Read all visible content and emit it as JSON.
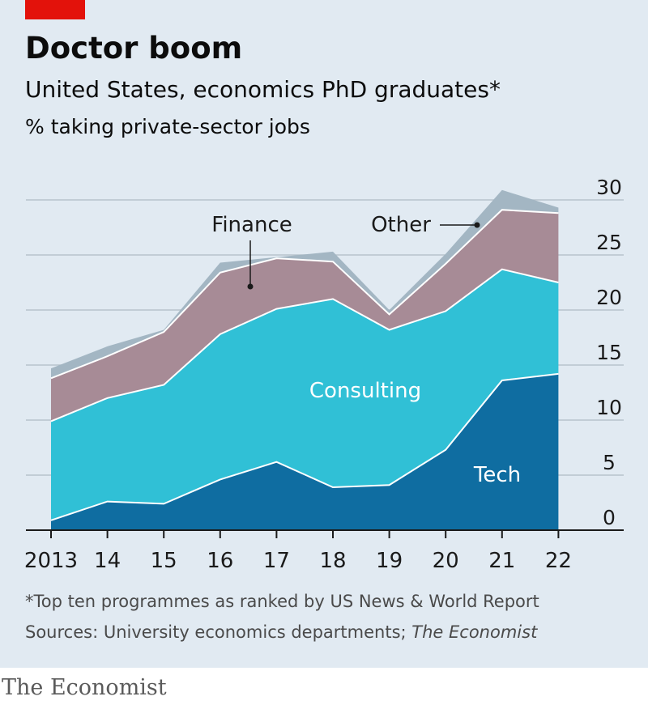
{
  "header": {
    "title": "Doctor boom",
    "subtitle": "United States, economics PhD graduates*",
    "unit": "% taking private-sector jobs"
  },
  "footer": {
    "footnote": "*Top ten programmes as ranked by US News & World Report",
    "sources_prefix": "Sources: University economics departments; ",
    "sources_italic": "The Economist",
    "brand": "The Economist"
  },
  "colors": {
    "panel_bg": "#e1eaf2",
    "brand_red": "#e3120b",
    "tech": "#0f6da1",
    "consulting": "#30c0d6",
    "finance": "#a78b96",
    "other": "#a3b6c3"
  },
  "chart_data": {
    "type": "area",
    "stacked": true,
    "x": [
      "2013",
      "14",
      "15",
      "16",
      "17",
      "18",
      "19",
      "20",
      "21",
      "22"
    ],
    "series": [
      {
        "name": "Tech",
        "values": [
          0.9,
          2.6,
          2.4,
          4.6,
          6.2,
          3.9,
          4.1,
          7.3,
          13.6,
          14.2
        ]
      },
      {
        "name": "Consulting",
        "values": [
          9.0,
          9.4,
          10.8,
          13.2,
          13.9,
          17.1,
          14.1,
          12.6,
          10.1,
          8.3
        ]
      },
      {
        "name": "Finance",
        "values": [
          3.9,
          3.8,
          4.8,
          5.6,
          4.6,
          3.4,
          1.4,
          4.3,
          5.4,
          6.3
        ]
      },
      {
        "name": "Other",
        "values": [
          0.9,
          0.9,
          0.2,
          0.9,
          0.1,
          0.9,
          0.4,
          0.9,
          1.8,
          0.5
        ]
      }
    ],
    "ylim": [
      0,
      30
    ],
    "yticks": [
      0,
      5,
      10,
      15,
      20,
      25,
      30
    ],
    "y_axis_side": "right",
    "grid": true,
    "legend": "inline labels"
  }
}
